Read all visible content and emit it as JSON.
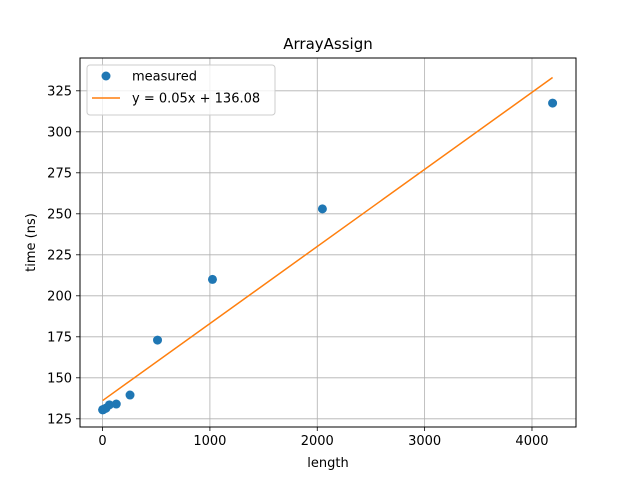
{
  "chart_data": {
    "type": "scatter",
    "title": "ArrayAssign",
    "xlabel": "length",
    "ylabel": "time (ns)",
    "xlim": [
      -210,
      4410
    ],
    "ylim": [
      120,
      345
    ],
    "grid": true,
    "x_ticks": [
      {
        "value": 0,
        "label": "0"
      },
      {
        "value": 1000,
        "label": "1000"
      },
      {
        "value": 2000,
        "label": "2000"
      },
      {
        "value": 3000,
        "label": "3000"
      },
      {
        "value": 4000,
        "label": "4000"
      }
    ],
    "y_ticks": [
      {
        "value": 125,
        "label": "125"
      },
      {
        "value": 150,
        "label": "150"
      },
      {
        "value": 175,
        "label": "175"
      },
      {
        "value": 200,
        "label": "200"
      },
      {
        "value": 225,
        "label": "225"
      },
      {
        "value": 250,
        "label": "250"
      },
      {
        "value": 275,
        "label": "275"
      },
      {
        "value": 300,
        "label": "300"
      },
      {
        "value": 325,
        "label": "325"
      }
    ],
    "series": [
      {
        "name": "measured",
        "kind": "points",
        "color": "#1f77b4",
        "x": [
          1,
          2,
          4,
          8,
          16,
          32,
          64,
          128,
          256,
          512,
          1024,
          2048,
          4192
        ],
        "y": [
          130.5,
          130.5,
          130.6,
          130.7,
          131,
          131.5,
          133.5,
          134,
          139.5,
          173,
          210,
          253,
          317.5
        ]
      },
      {
        "name": "y = 0.05x + 136.08",
        "kind": "line",
        "color": "#ff7f0e",
        "slope": 0.047,
        "intercept": 136.08,
        "x_range": [
          1,
          4192
        ]
      }
    ],
    "legend": {
      "location": "upper-left",
      "entries": [
        "measured",
        "y = 0.05x + 136.08"
      ]
    }
  }
}
